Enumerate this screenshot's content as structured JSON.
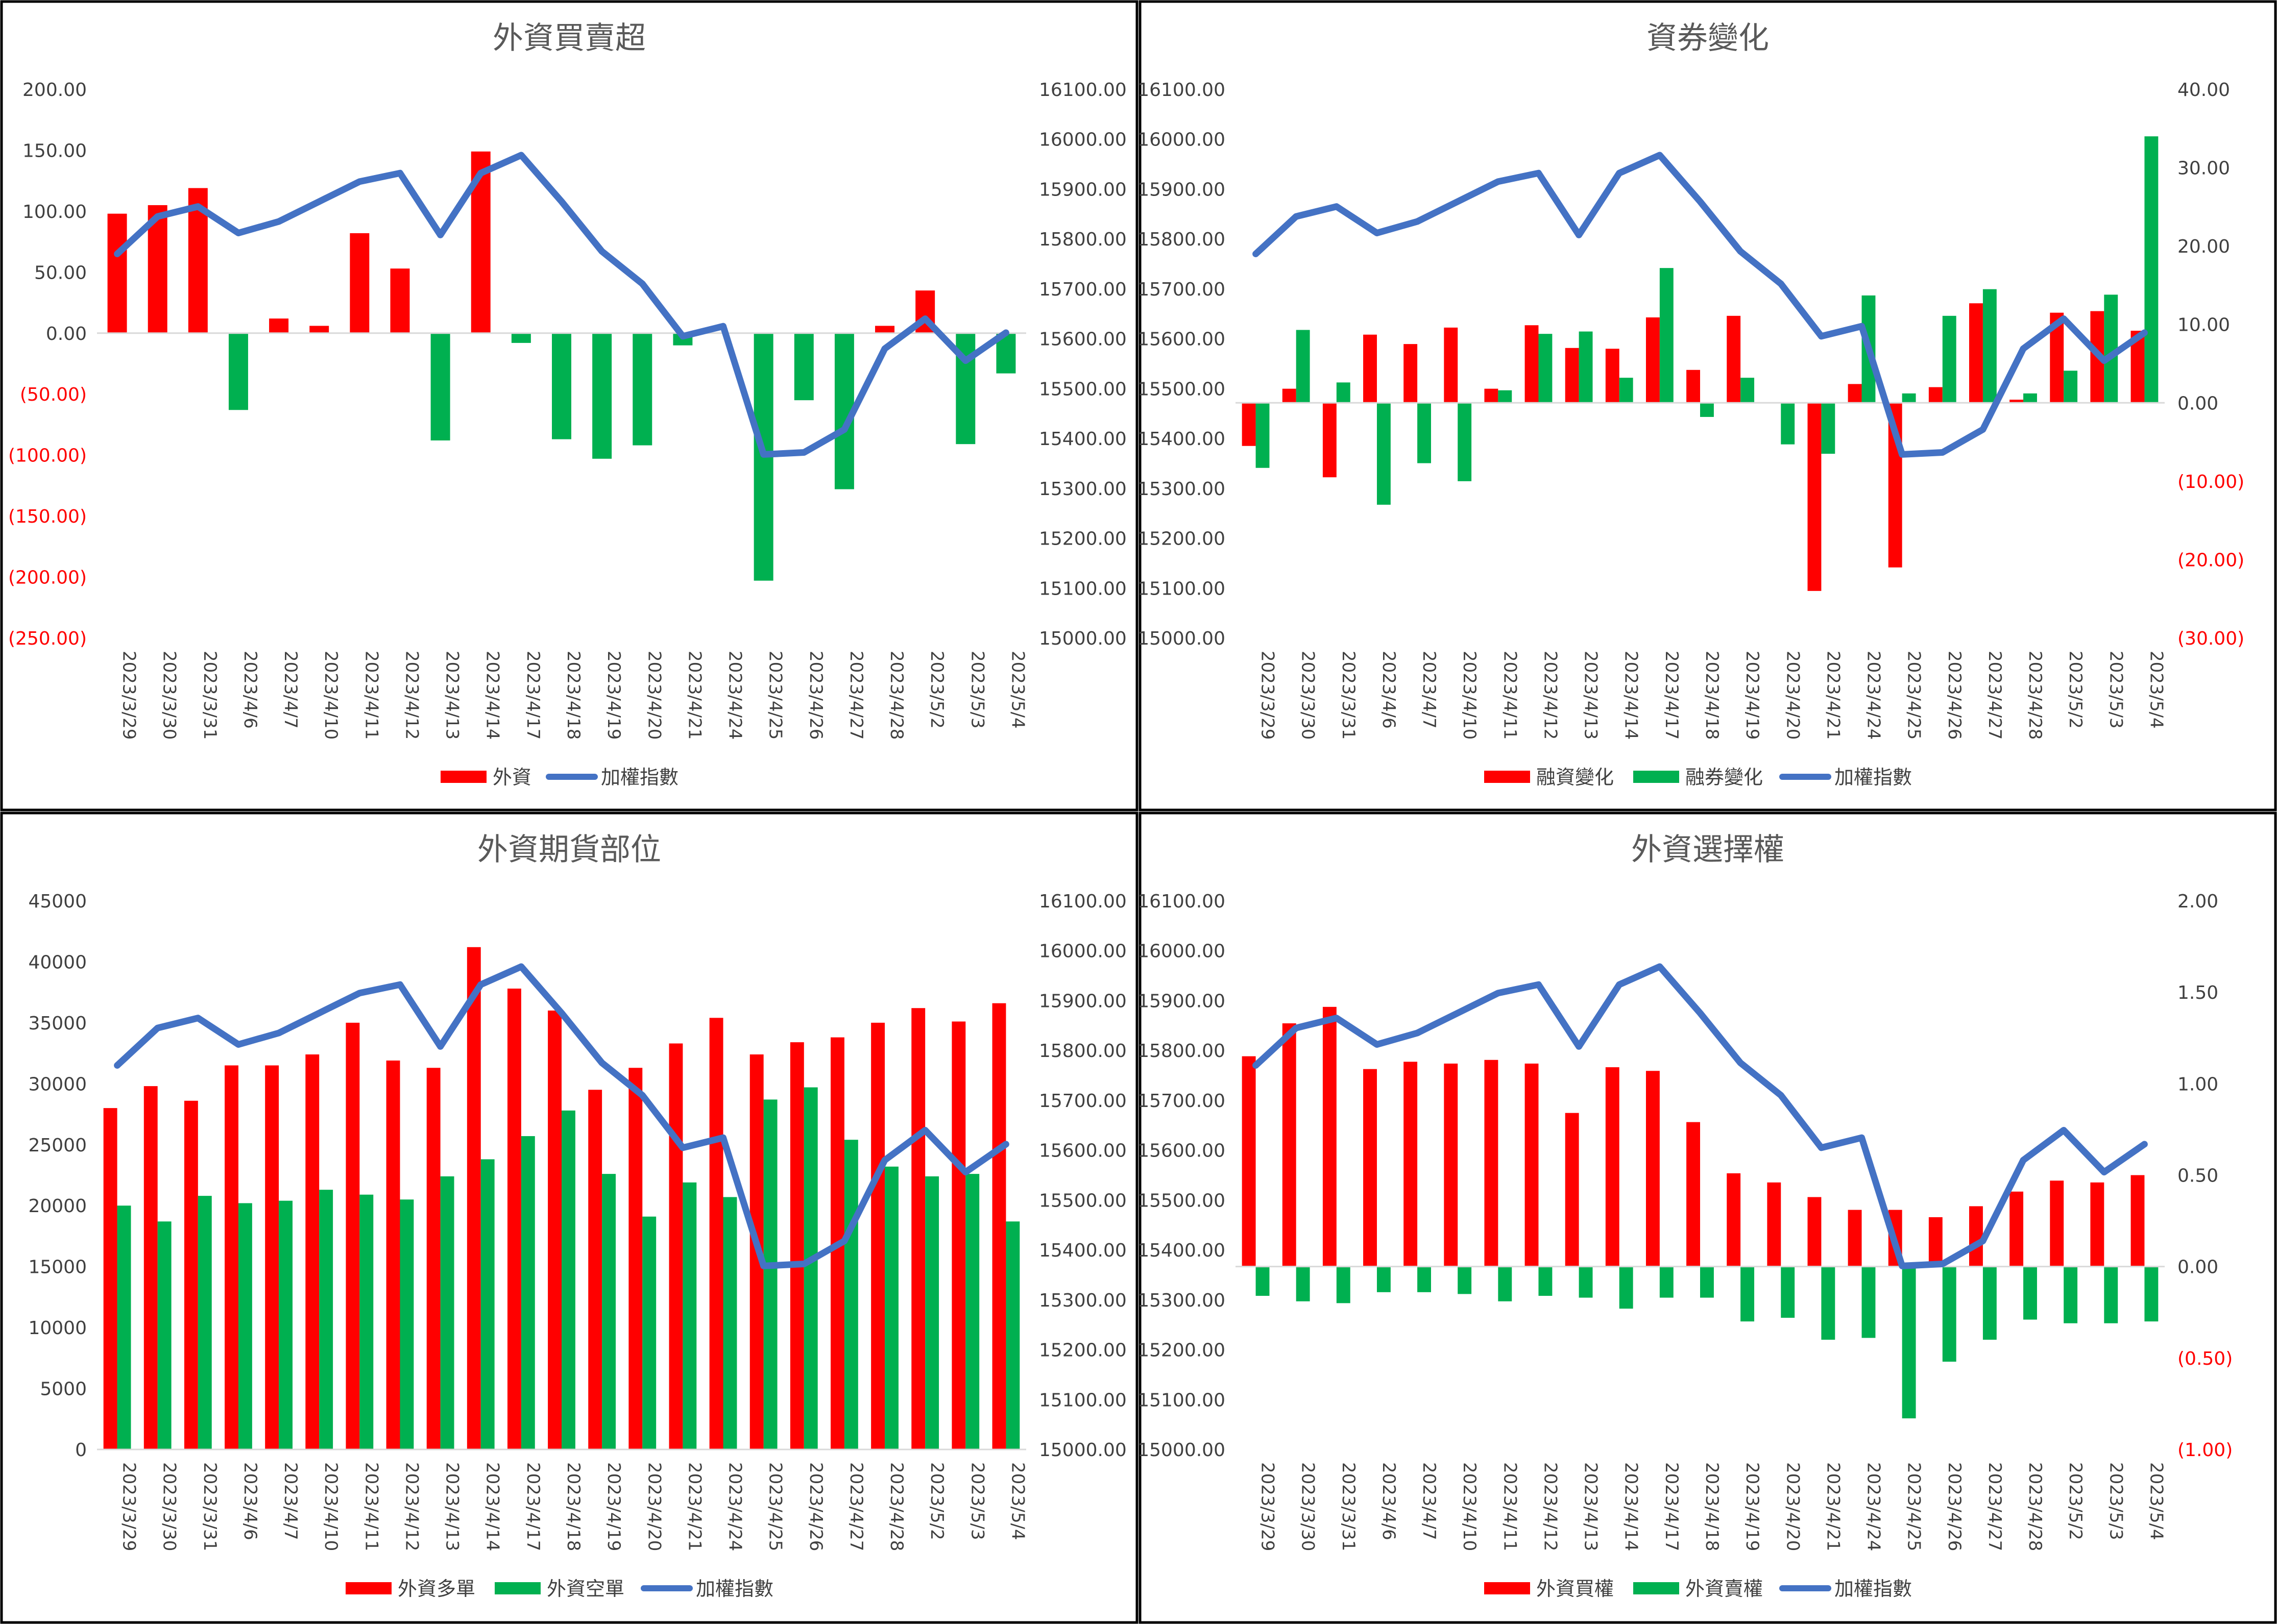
{
  "colors": {
    "red": "#ff0000",
    "green": "#00b050",
    "blue": "#4472c4",
    "neg": "#ff0000",
    "axis": "#404040",
    "title": "#595959"
  },
  "dates": [
    "2023/3/29",
    "2023/3/30",
    "2023/3/31",
    "2023/4/6",
    "2023/4/7",
    "2023/4/10",
    "2023/4/11",
    "2023/4/12",
    "2023/4/13",
    "2023/4/14",
    "2023/4/17",
    "2023/4/18",
    "2023/4/19",
    "2023/4/20",
    "2023/4/21",
    "2023/4/24",
    "2023/4/25",
    "2023/4/26",
    "2023/4/27",
    "2023/4/28",
    "2023/5/2",
    "2023/5/3",
    "2023/5/4"
  ],
  "index_series": {
    "name": "加權指數",
    "values": [
      15770,
      15845,
      15865,
      15812,
      15835,
      15875,
      15915,
      15932,
      15808,
      15932,
      15968,
      15875,
      15775,
      15710,
      15605,
      15625,
      15368,
      15372,
      15418,
      15580,
      15640,
      15556,
      15612
    ]
  },
  "chart_data": [
    {
      "type": "bar",
      "title": "外資買賣超",
      "left_axis": {
        "min": -250,
        "max": 200,
        "step": 50,
        "format": "acct2",
        "ticks": [
          "200.00",
          "150.00",
          "100.00",
          "50.00",
          "0.00",
          "(50.00)",
          "(100.00)",
          "(150.00)",
          "(200.00)",
          "(250.00)"
        ]
      },
      "right_axis": {
        "min": 15000,
        "max": 16100,
        "step": 100,
        "format": "fixed2",
        "ticks": [
          "16100.00",
          "16000.00",
          "15900.00",
          "15800.00",
          "15700.00",
          "15600.00",
          "15500.00",
          "15400.00",
          "15300.00",
          "15200.00",
          "15100.00",
          "15000.00"
        ]
      },
      "bar_axis": "left",
      "bar_mode": "signcolor",
      "series": [
        {
          "name": "外資",
          "values": [
            98,
            105,
            119,
            -63,
            12,
            6,
            82,
            53,
            -88,
            149,
            -8,
            -87,
            -103,
            -92,
            -10,
            0,
            -203,
            -55,
            -128,
            6,
            35,
            -91,
            -33
          ]
        }
      ],
      "legend": [
        "外資",
        "加權指數"
      ]
    },
    {
      "type": "bar",
      "title": "資券變化",
      "left_axis": {
        "min": 15000,
        "max": 16100,
        "step": 100,
        "format": "fixed2",
        "ticks": [
          "16100.00",
          "16000.00",
          "15900.00",
          "15800.00",
          "15700.00",
          "15600.00",
          "15500.00",
          "15400.00",
          "15300.00",
          "15200.00",
          "15100.00",
          "15000.00"
        ]
      },
      "right_axis": {
        "min": -30,
        "max": 40,
        "step": 10,
        "format": "acct2",
        "ticks": [
          "40.00",
          "30.00",
          "20.00",
          "10.00",
          "0.00",
          "(10.00)",
          "(20.00)",
          "(30.00)"
        ]
      },
      "bar_axis": "right",
      "bar_mode": "grouped",
      "series": [
        {
          "name": "融資變化",
          "values": [
            -5.5,
            1.8,
            -9.5,
            8.7,
            7.5,
            9.6,
            1.8,
            9.9,
            7.0,
            6.9,
            10.9,
            4.2,
            11.1,
            0,
            -24,
            2.4,
            -21,
            2.0,
            12.7,
            0.4,
            11.5,
            11.7,
            9.2
          ]
        },
        {
          "name": "融券變化",
          "values": [
            -8.3,
            9.3,
            2.6,
            -13,
            -7.7,
            -10,
            1.6,
            8.8,
            9.1,
            3.2,
            17.2,
            -1.8,
            3.2,
            -5.3,
            -6.5,
            13.7,
            1.2,
            11.1,
            14.5,
            1.2,
            4.1,
            13.8,
            34
          ]
        }
      ],
      "legend": [
        "融資變化",
        "融券變化",
        "加權指數"
      ]
    },
    {
      "type": "bar",
      "title": "外資期貨部位",
      "left_axis": {
        "min": 0,
        "max": 45000,
        "step": 5000,
        "format": "int",
        "ticks": [
          "45000",
          "40000",
          "35000",
          "30000",
          "25000",
          "20000",
          "15000",
          "10000",
          "5000",
          "0"
        ]
      },
      "right_axis": {
        "min": 15000,
        "max": 16100,
        "step": 100,
        "format": "fixed2",
        "ticks": [
          "16100.00",
          "16000.00",
          "15900.00",
          "15800.00",
          "15700.00",
          "15600.00",
          "15500.00",
          "15400.00",
          "15300.00",
          "15200.00",
          "15100.00",
          "15000.00"
        ]
      },
      "bar_axis": "left",
      "bar_mode": "grouped",
      "series": [
        {
          "name": "外資多單",
          "values": [
            28000,
            29800,
            28600,
            31500,
            31500,
            32400,
            35000,
            31900,
            31300,
            41200,
            37800,
            36000,
            29500,
            31300,
            33300,
            35400,
            32400,
            33400,
            33800,
            35000,
            36200,
            35100,
            36600
          ]
        },
        {
          "name": "外資空單",
          "values": [
            20000,
            18700,
            20800,
            20200,
            20400,
            21300,
            20900,
            20500,
            22400,
            23800,
            25700,
            27800,
            22600,
            19100,
            21900,
            20700,
            28700,
            29700,
            25400,
            23200,
            22400,
            22600,
            18700
          ]
        }
      ],
      "legend": [
        "外資多單",
        "外資空單",
        "加權指數"
      ]
    },
    {
      "type": "bar",
      "title": "外資選擇權",
      "left_axis": {
        "min": 15000,
        "max": 16100,
        "step": 100,
        "format": "fixed2",
        "ticks": [
          "16100.00",
          "16000.00",
          "15900.00",
          "15800.00",
          "15700.00",
          "15600.00",
          "15500.00",
          "15400.00",
          "15300.00",
          "15200.00",
          "15100.00",
          "15000.00"
        ]
      },
      "right_axis": {
        "min": -1,
        "max": 2,
        "step": 0.5,
        "format": "acct2",
        "ticks": [
          "2.00",
          "1.50",
          "1.00",
          "0.50",
          "0.00",
          "(0.50)",
          "(1.00)"
        ]
      },
      "bar_axis": "right",
      "bar_mode": "grouped",
      "series": [
        {
          "name": "外資買權",
          "values": [
            1.15,
            1.33,
            1.42,
            1.08,
            1.12,
            1.11,
            1.13,
            1.11,
            0.84,
            1.09,
            1.07,
            0.79,
            0.51,
            0.46,
            0.38,
            0.31,
            0.31,
            0.27,
            0.33,
            0.41,
            0.47,
            0.46,
            0.5
          ]
        },
        {
          "name": "外資賣權",
          "values": [
            -0.16,
            -0.19,
            -0.2,
            -0.14,
            -0.14,
            -0.15,
            -0.19,
            -0.16,
            -0.17,
            -0.23,
            -0.17,
            -0.17,
            -0.3,
            -0.28,
            -0.4,
            -0.39,
            -0.83,
            -0.52,
            -0.4,
            -0.29,
            -0.31,
            -0.31,
            -0.3
          ]
        }
      ],
      "legend": [
        "外資買權",
        "外資賣權",
        "加權指數"
      ]
    }
  ]
}
